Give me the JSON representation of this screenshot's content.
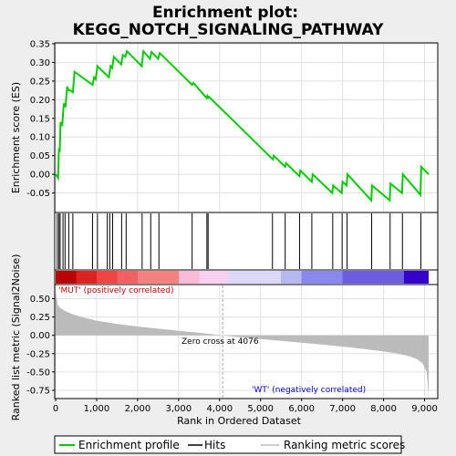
{
  "chart_data": {
    "type": "line",
    "title_line1": "Enrichment plot:",
    "title_line2": "KEGG_NOTCH_SIGNALING_PATHWAY",
    "xlabel": "Rank in Ordered Dataset",
    "ylabel_top": "Enrichment score (ES)",
    "ylabel_bottom": "Ranked list metric (Signal2Noise)",
    "xlim": [
      0,
      9300
    ],
    "es_ylim": [
      -0.1,
      0.35
    ],
    "metric_ylim": [
      -0.85,
      0.68
    ],
    "x_ticks": [
      0,
      1000,
      2000,
      3000,
      4000,
      5000,
      6000,
      7000,
      8000,
      9000
    ],
    "x_tick_labels": [
      "0",
      "1,000",
      "2,000",
      "3,000",
      "4,000",
      "5,000",
      "6,000",
      "7,000",
      "8,000",
      "9,000"
    ],
    "es_ticks": [
      -0.05,
      0.0,
      0.05,
      0.1,
      0.15,
      0.2,
      0.25,
      0.3,
      0.35
    ],
    "es_tick_labels": [
      "-0.05",
      "0.00",
      "0.05",
      "0.10",
      "0.15",
      "0.20",
      "0.25",
      "0.30",
      "0.35"
    ],
    "metric_ticks": [
      -0.75,
      -0.5,
      -0.25,
      0.0,
      0.25,
      0.5
    ],
    "metric_tick_labels": [
      "-0.75",
      "-0.50",
      "-0.25",
      "0.00",
      "0.25",
      "0.50"
    ],
    "enrichment_profile": {
      "x": [
        0,
        60,
        80,
        100,
        120,
        160,
        200,
        240,
        280,
        320,
        360,
        420,
        460,
        900,
        940,
        980,
        1020,
        1300,
        1340,
        1380,
        1420,
        1600,
        1640,
        1700,
        1740,
        2100,
        2140,
        2300,
        2340,
        2500,
        2540,
        3330,
        3360,
        3680,
        3700,
        3720,
        3740,
        5300,
        5320,
        5600,
        5620,
        5950,
        5970,
        6250,
        6270,
        6750,
        6770,
        6980,
        7000,
        7100,
        7120,
        7700,
        7720,
        8150,
        8170,
        8450,
        8470,
        8900,
        8920,
        9100
      ],
      "y": [
        0.0,
        -0.01,
        0.07,
        0.06,
        0.14,
        0.13,
        0.19,
        0.18,
        0.235,
        0.225,
        0.225,
        0.22,
        0.275,
        0.24,
        0.26,
        0.255,
        0.29,
        0.26,
        0.29,
        0.285,
        0.315,
        0.295,
        0.32,
        0.315,
        0.33,
        0.29,
        0.33,
        0.31,
        0.328,
        0.31,
        0.325,
        0.24,
        0.245,
        0.205,
        0.21,
        0.205,
        0.208,
        0.04,
        0.05,
        0.02,
        0.03,
        -0.005,
        0.01,
        -0.02,
        0.0,
        -0.05,
        -0.03,
        -0.05,
        -0.02,
        -0.03,
        0.0,
        -0.07,
        -0.03,
        -0.07,
        -0.025,
        -0.05,
        0.0,
        -0.055,
        0.02,
        0.0
      ]
    },
    "hits": [
      40,
      80,
      110,
      180,
      230,
      320,
      420,
      900,
      1020,
      1260,
      1320,
      1390,
      1610,
      1720,
      2110,
      2320,
      2520,
      3330,
      3690,
      3720,
      5290,
      5600,
      5950,
      6250,
      6760,
      6990,
      7110,
      7710,
      8160,
      8460,
      8910
    ],
    "metric": {
      "x": [
        0,
        50,
        100,
        200,
        400,
        700,
        1000,
        1500,
        2000,
        2500,
        3000,
        3500,
        4076,
        4500,
        5000,
        5500,
        6000,
        6500,
        7000,
        7500,
        8000,
        8300,
        8600,
        8800,
        8950,
        9050,
        9080,
        9100
      ],
      "y": [
        0.62,
        0.42,
        0.38,
        0.34,
        0.29,
        0.24,
        0.2,
        0.155,
        0.12,
        0.09,
        0.06,
        0.035,
        0.0,
        -0.025,
        -0.05,
        -0.075,
        -0.1,
        -0.125,
        -0.155,
        -0.185,
        -0.22,
        -0.245,
        -0.28,
        -0.32,
        -0.38,
        -0.5,
        -0.68,
        -0.85
      ]
    },
    "zero_cross_label": "Zero cross at 4076",
    "zero_cross_x": 4076,
    "pos_label": "'MUT' (positively correlated)",
    "neg_label": "'WT' (negatively correlated)",
    "colorbar_stops": [
      "#bb0000",
      "#dd2222",
      "#ee4444",
      "#f26060",
      "#f58080",
      "#fbbbd8",
      "#f8d0f0",
      "#dcd8f8",
      "#b8b8f0",
      "#8888ee",
      "#6c5ce0",
      "#3300cc"
    ],
    "colorbar_x": [
      0,
      500,
      1000,
      1500,
      2000,
      3000,
      3500,
      4200,
      5500,
      6000,
      7000,
      8500,
      9100
    ],
    "legend": [
      "Enrichment profile",
      "Hits",
      "Ranking metric scores"
    ],
    "colors": {
      "profile": "#00cc00",
      "hits": "#000000",
      "metric_fill": "#bbbbbb",
      "pos_text": "#cc0000",
      "neg_text": "#0000cc",
      "zero_line": "#aaaaaa"
    }
  }
}
